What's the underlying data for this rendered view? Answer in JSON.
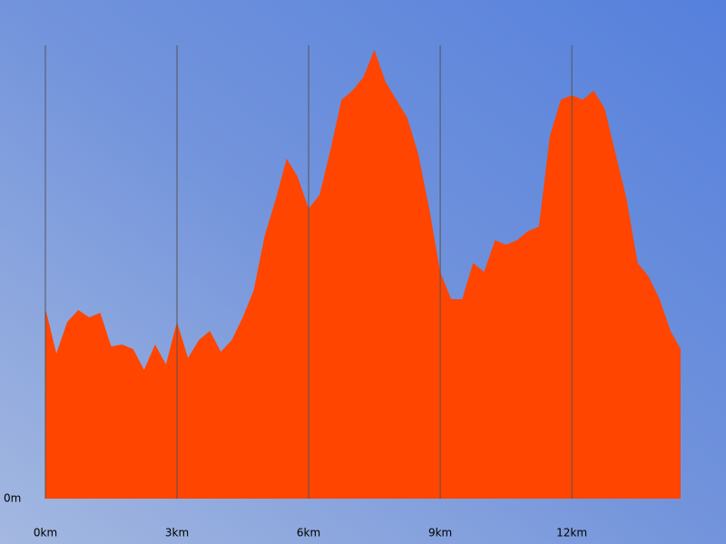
{
  "chart_data": {
    "type": "area",
    "x": [
      0,
      0.25,
      0.5,
      0.75,
      1,
      1.25,
      1.5,
      1.75,
      2,
      2.25,
      2.5,
      2.75,
      3,
      3.25,
      3.5,
      3.75,
      4,
      4.25,
      4.5,
      4.75,
      5,
      5.25,
      5.5,
      5.75,
      6,
      6.25,
      6.5,
      6.75,
      7,
      7.25,
      7.5,
      7.75,
      8,
      8.25,
      8.5,
      8.75,
      9,
      9.25,
      9.5,
      9.75,
      10,
      10.25,
      10.5,
      10.75,
      11,
      11.25,
      11.5,
      11.75,
      12,
      12.25,
      12.5,
      12.75,
      13,
      13.25,
      13.5,
      13.75,
      14,
      14.25,
      14.48
    ],
    "values": [
      210,
      160,
      195,
      208,
      200,
      205,
      168,
      170,
      165,
      142,
      170,
      148,
      195,
      155,
      175,
      185,
      162,
      175,
      200,
      230,
      290,
      330,
      375,
      355,
      320,
      335,
      385,
      440,
      450,
      465,
      495,
      460,
      440,
      420,
      380,
      320,
      250,
      220,
      220,
      260,
      250,
      285,
      280,
      285,
      295,
      300,
      400,
      440,
      445,
      440,
      450,
      430,
      380,
      330,
      260,
      245,
      220,
      185,
      165
    ],
    "color": "#ff4500",
    "xlim": [
      0,
      14.48
    ],
    "ylim": [
      0,
      500
    ],
    "xticks": [
      {
        "value": 0,
        "label": "0km"
      },
      {
        "value": 3,
        "label": "3km"
      },
      {
        "value": 6,
        "label": "6km"
      },
      {
        "value": 9,
        "label": "9km"
      },
      {
        "value": 12,
        "label": "12km"
      }
    ],
    "yticks": [
      {
        "value": 0,
        "label": "0m"
      }
    ],
    "grid": true
  }
}
